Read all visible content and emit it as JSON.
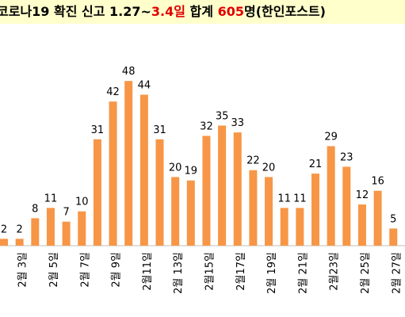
{
  "chart_data": {
    "type": "bar",
    "title_parts": [
      {
        "text": "코로나19 확진 신고 1.27~",
        "color": "#000000"
      },
      {
        "text": "3.4일",
        "color": "#e00000"
      },
      {
        "text": " 합계 ",
        "color": "#000000"
      },
      {
        "text": "605",
        "color": "#e00000"
      },
      {
        "text": "명(한인포스트)",
        "color": "#000000"
      }
    ],
    "categories": [
      null,
      "2월 3일",
      null,
      "2월 5일",
      null,
      "2월 7일",
      null,
      "2월 9일",
      null,
      "2월11일",
      null,
      "2월 13일",
      null,
      "2월15일",
      null,
      "2월17일",
      null,
      "2월 19일",
      null,
      "2월 21일",
      null,
      "2월23일",
      null,
      "2월 25일",
      null,
      "2월 27일"
    ],
    "values": [
      2,
      2,
      8,
      11,
      7,
      10,
      31,
      42,
      48,
      44,
      31,
      20,
      19,
      32,
      35,
      33,
      22,
      20,
      11,
      11,
      21,
      29,
      23,
      12,
      16,
      5
    ],
    "color": "#f79646"
  }
}
